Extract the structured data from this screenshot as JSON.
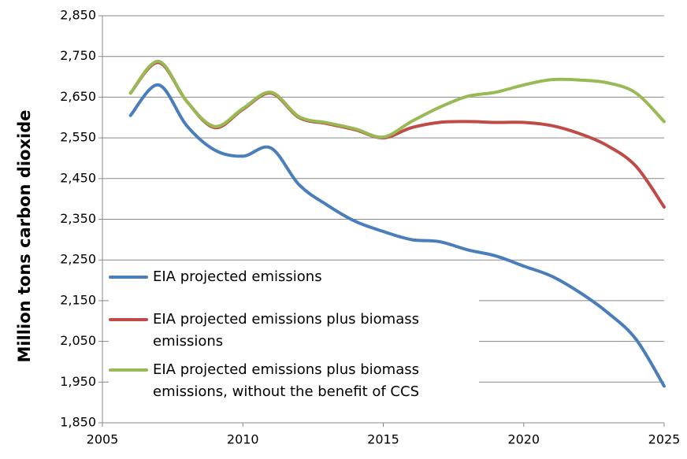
{
  "chart_data": {
    "type": "line",
    "y_label": "Million tons carbon dioxide",
    "x": [
      2006,
      2007,
      2008,
      2009,
      2010,
      2011,
      2012,
      2013,
      2014,
      2015,
      2016,
      2017,
      2018,
      2019,
      2020,
      2021,
      2022,
      2023,
      2024,
      2025
    ],
    "series": [
      {
        "name": "EIA projected emissions",
        "color": "#4a7ebb",
        "values": [
          2605,
          2680,
          2580,
          2520,
          2505,
          2525,
          2435,
          2385,
          2345,
          2320,
          2300,
          2295,
          2275,
          2260,
          2235,
          2210,
          2170,
          2120,
          2055,
          1940
        ]
      },
      {
        "name": "EIA projected emissions plus biomass emissions",
        "color": "#be4b48",
        "values": [
          2660,
          2735,
          2640,
          2575,
          2620,
          2660,
          2600,
          2585,
          2570,
          2550,
          2575,
          2588,
          2590,
          2588,
          2588,
          2580,
          2560,
          2530,
          2480,
          2380
        ]
      },
      {
        "name": "EIA projected emissions plus biomass emissions, without the benefit of CCS",
        "color": "#98b954",
        "values": [
          2660,
          2738,
          2640,
          2578,
          2622,
          2662,
          2602,
          2587,
          2572,
          2552,
          2590,
          2625,
          2652,
          2662,
          2680,
          2693,
          2692,
          2685,
          2660,
          2590
        ]
      }
    ],
    "xlim": [
      2005,
      2025
    ],
    "xticks": [
      2005,
      2010,
      2015,
      2020,
      2025
    ],
    "ylim": [
      1850,
      2850
    ],
    "yticks": [
      {
        "value": 1850,
        "label": "1,850"
      },
      {
        "value": 1950,
        "label": "1,950"
      },
      {
        "value": 2050,
        "label": "2,050"
      },
      {
        "value": 2150,
        "label": "2,150"
      },
      {
        "value": 2250,
        "label": "2,250"
      },
      {
        "value": 2350,
        "label": "2,350"
      },
      {
        "value": 2450,
        "label": "2,450"
      },
      {
        "value": 2550,
        "label": "2,550"
      },
      {
        "value": 2650,
        "label": "2,650"
      },
      {
        "value": 2750,
        "label": "2,750"
      },
      {
        "value": 2850,
        "label": "2,850"
      }
    ],
    "grid": true,
    "legend": "lower-left"
  }
}
